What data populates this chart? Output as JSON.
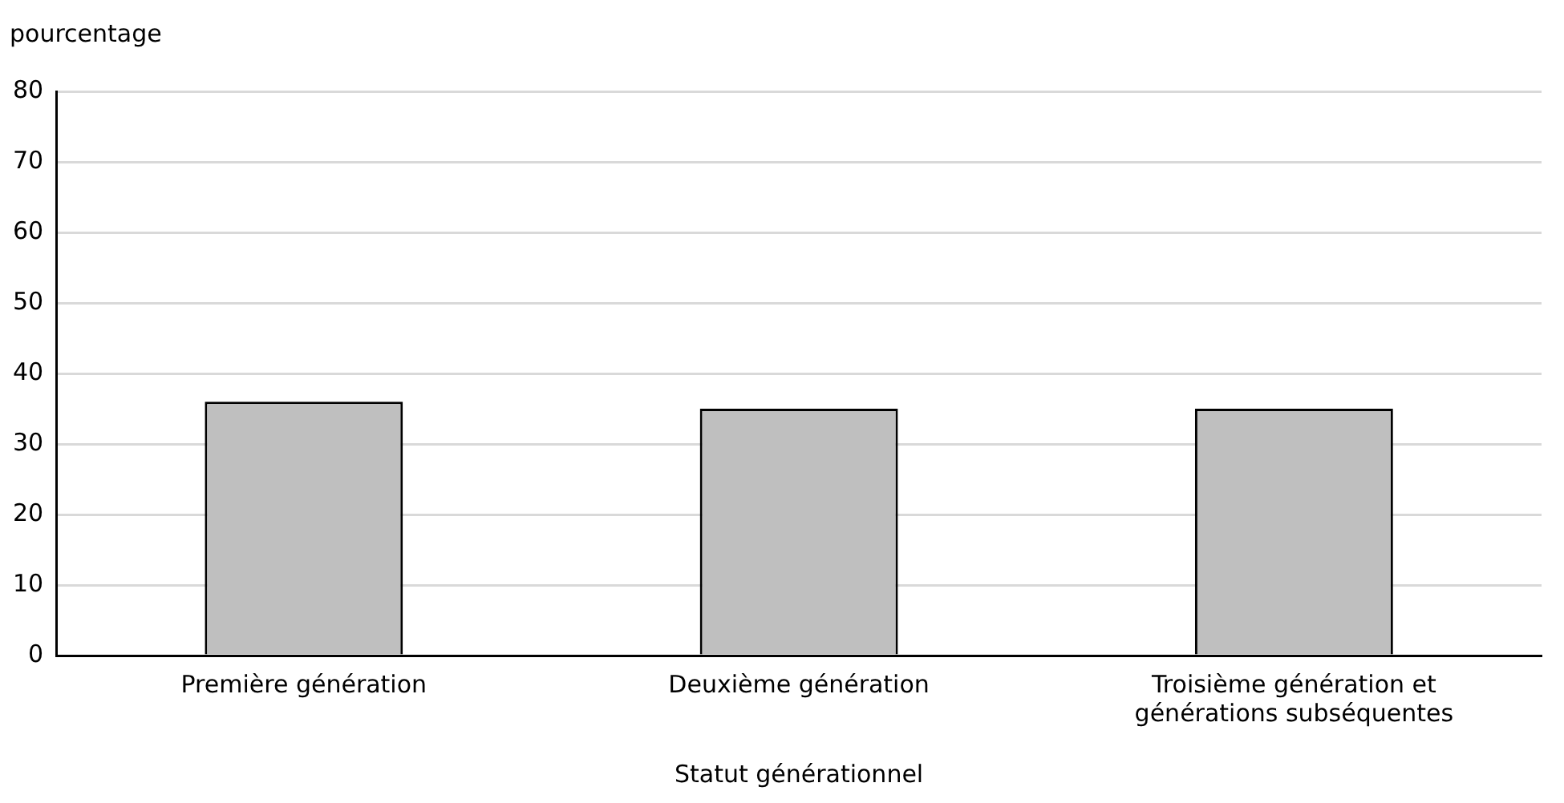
{
  "chart_data": {
    "type": "bar",
    "ylabel": "pourcentage",
    "xlabel": "Statut générationnel",
    "categories": [
      "Première génération",
      "Deuxième génération",
      "Troisième génération et générations subséquentes"
    ],
    "values": [
      36,
      35,
      35
    ],
    "color": "#bfbfbf",
    "ylim": [
      0,
      80
    ],
    "yticks": [
      0,
      10,
      20,
      30,
      40,
      50,
      60,
      70,
      80
    ],
    "grid": "y"
  }
}
